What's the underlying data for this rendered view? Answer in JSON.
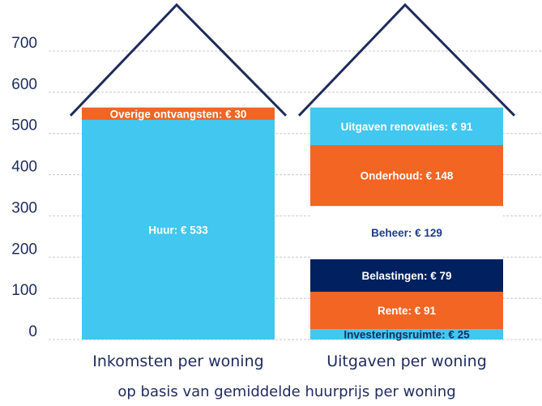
{
  "chart_data": {
    "type": "bar",
    "stacked": true,
    "ylim": [
      0,
      700
    ],
    "yticks": [
      0,
      100,
      200,
      300,
      400,
      500,
      600,
      700
    ],
    "grid": true,
    "categories": [
      "Inkomsten per woning",
      "Uitgaven per woning"
    ],
    "caption": "op basis van gemiddelde huurprijs per woning",
    "stacks": [
      {
        "category": "Inkomsten per woning",
        "segments": [
          {
            "label": "Huur: € 533",
            "value": 533,
            "color": "#41c7f0",
            "text_color": "#ffffff"
          },
          {
            "label": "Overige ontvangsten: € 30",
            "value": 30,
            "color": "#f26522",
            "text_color": "#ffffff"
          }
        ]
      },
      {
        "category": "Uitgaven per woning",
        "segments": [
          {
            "label": "Investeringsruimte: € 25",
            "value": 25,
            "color": "#41c7f0",
            "text_color": "#1e2b5c"
          },
          {
            "label": "Rente: € 91",
            "value": 91,
            "color": "#f26522",
            "text_color": "#ffffff"
          },
          {
            "label": "Belastingen: € 79",
            "value": 79,
            "color": "#002060",
            "text_color": "#ffffff"
          },
          {
            "label": "Beheer: € 129",
            "value": 129,
            "color": "#ffffff",
            "text_color": "#1e3a8a"
          },
          {
            "label": "Onderhoud: € 148",
            "value": 148,
            "color": "#f26522",
            "text_color": "#ffffff"
          },
          {
            "label": "Uitgaven renovaties: € 91",
            "value": 91,
            "color": "#41c7f0",
            "text_color": "#ffffff"
          }
        ]
      }
    ],
    "colors": {
      "axis_text": "#1e2b5c",
      "grid": "#c8c8c8",
      "roof": "#1e2b5c"
    }
  }
}
